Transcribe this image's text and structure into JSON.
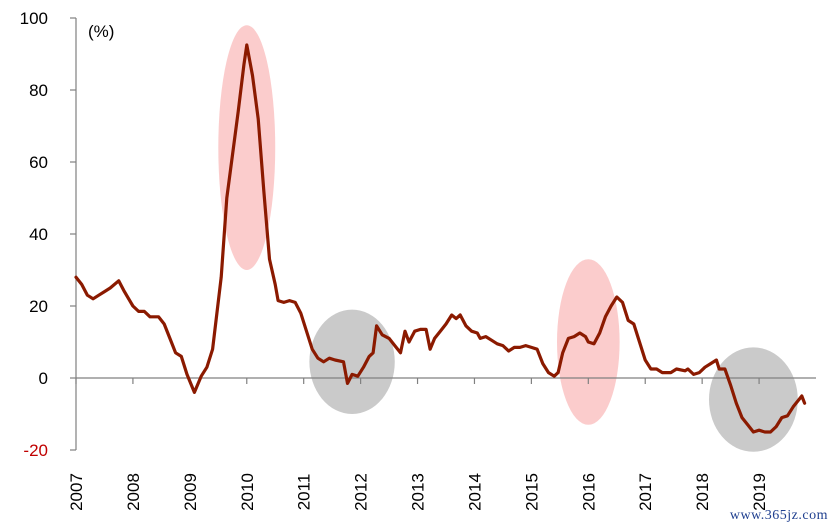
{
  "chart_data": {
    "type": "line",
    "unit_label": "(%)",
    "ylim": [
      -20,
      100
    ],
    "yticks": [
      -20,
      0,
      20,
      40,
      60,
      80,
      100
    ],
    "xlim": [
      2007,
      2020
    ],
    "xticks": [
      "2007",
      "2008",
      "2009",
      "2010",
      "2011",
      "2012",
      "2013",
      "2014",
      "2015",
      "2016",
      "2017",
      "2018",
      "2019"
    ],
    "grid": false,
    "legend": "none",
    "series": [
      {
        "color": "#8b1a00",
        "points": [
          [
            2007.0,
            28
          ],
          [
            2007.1,
            26
          ],
          [
            2007.2,
            23
          ],
          [
            2007.3,
            22
          ],
          [
            2007.4,
            23
          ],
          [
            2007.5,
            24
          ],
          [
            2007.6,
            25
          ],
          [
            2007.75,
            27
          ],
          [
            2007.85,
            24
          ],
          [
            2008.0,
            20
          ],
          [
            2008.1,
            18.5
          ],
          [
            2008.2,
            18.5
          ],
          [
            2008.3,
            17
          ],
          [
            2008.45,
            17
          ],
          [
            2008.55,
            15
          ],
          [
            2008.65,
            11
          ],
          [
            2008.75,
            7
          ],
          [
            2008.85,
            6
          ],
          [
            2008.95,
            1
          ],
          [
            2009.08,
            -4
          ],
          [
            2009.2,
            0.5
          ],
          [
            2009.3,
            3
          ],
          [
            2009.4,
            8
          ],
          [
            2009.55,
            28
          ],
          [
            2009.65,
            50
          ],
          [
            2009.75,
            62
          ],
          [
            2009.85,
            74
          ],
          [
            2009.95,
            87
          ],
          [
            2010.0,
            92.5
          ],
          [
            2010.1,
            84
          ],
          [
            2010.2,
            72
          ],
          [
            2010.3,
            52
          ],
          [
            2010.4,
            33
          ],
          [
            2010.5,
            26
          ],
          [
            2010.55,
            21.5
          ],
          [
            2010.65,
            21
          ],
          [
            2010.75,
            21.5
          ],
          [
            2010.85,
            21
          ],
          [
            2010.95,
            18
          ],
          [
            2011.05,
            13
          ],
          [
            2011.15,
            8
          ],
          [
            2011.25,
            5.5
          ],
          [
            2011.35,
            4.5
          ],
          [
            2011.45,
            5.5
          ],
          [
            2011.55,
            5
          ],
          [
            2011.7,
            4.5
          ],
          [
            2011.77,
            -1.5
          ],
          [
            2011.85,
            1
          ],
          [
            2011.95,
            0.5
          ],
          [
            2012.05,
            3
          ],
          [
            2012.15,
            6
          ],
          [
            2012.22,
            7
          ],
          [
            2012.28,
            14.5
          ],
          [
            2012.38,
            12
          ],
          [
            2012.5,
            11
          ],
          [
            2012.6,
            9
          ],
          [
            2012.7,
            7
          ],
          [
            2012.78,
            13
          ],
          [
            2012.85,
            10
          ],
          [
            2012.95,
            13
          ],
          [
            2013.05,
            13.5
          ],
          [
            2013.15,
            13.5
          ],
          [
            2013.22,
            8
          ],
          [
            2013.3,
            11
          ],
          [
            2013.4,
            13
          ],
          [
            2013.5,
            15
          ],
          [
            2013.6,
            17.5
          ],
          [
            2013.68,
            16.5
          ],
          [
            2013.75,
            17.5
          ],
          [
            2013.85,
            14.5
          ],
          [
            2013.95,
            13
          ],
          [
            2014.05,
            12.5
          ],
          [
            2014.1,
            11
          ],
          [
            2014.2,
            11.5
          ],
          [
            2014.3,
            10.5
          ],
          [
            2014.4,
            9.5
          ],
          [
            2014.5,
            9
          ],
          [
            2014.6,
            7.5
          ],
          [
            2014.7,
            8.5
          ],
          [
            2014.8,
            8.5
          ],
          [
            2014.9,
            9
          ],
          [
            2015.0,
            8.5
          ],
          [
            2015.1,
            8
          ],
          [
            2015.2,
            4
          ],
          [
            2015.3,
            1.5
          ],
          [
            2015.4,
            0.5
          ],
          [
            2015.47,
            1.5
          ],
          [
            2015.55,
            7
          ],
          [
            2015.65,
            11
          ],
          [
            2015.75,
            11.5
          ],
          [
            2015.85,
            12.5
          ],
          [
            2015.95,
            11.5
          ],
          [
            2016.0,
            10
          ],
          [
            2016.1,
            9.5
          ],
          [
            2016.2,
            12.5
          ],
          [
            2016.3,
            17
          ],
          [
            2016.4,
            20
          ],
          [
            2016.5,
            22.5
          ],
          [
            2016.6,
            21
          ],
          [
            2016.7,
            16
          ],
          [
            2016.8,
            15
          ],
          [
            2016.9,
            10
          ],
          [
            2017.0,
            5
          ],
          [
            2017.1,
            2.5
          ],
          [
            2017.2,
            2.5
          ],
          [
            2017.3,
            1.5
          ],
          [
            2017.45,
            1.5
          ],
          [
            2017.55,
            2.5
          ],
          [
            2017.7,
            2
          ],
          [
            2017.75,
            2.5
          ],
          [
            2017.85,
            1
          ],
          [
            2017.95,
            1.5
          ],
          [
            2018.05,
            3
          ],
          [
            2018.15,
            4
          ],
          [
            2018.25,
            5
          ],
          [
            2018.3,
            2.5
          ],
          [
            2018.4,
            2.5
          ],
          [
            2018.5,
            -2
          ],
          [
            2018.6,
            -7
          ],
          [
            2018.7,
            -11
          ],
          [
            2018.8,
            -13
          ],
          [
            2018.9,
            -15
          ],
          [
            2019.0,
            -14.5
          ],
          [
            2019.1,
            -15
          ],
          [
            2019.2,
            -15
          ],
          [
            2019.3,
            -13.5
          ],
          [
            2019.4,
            -11
          ],
          [
            2019.5,
            -10.5
          ],
          [
            2019.6,
            -8
          ],
          [
            2019.7,
            -6
          ],
          [
            2019.75,
            -5
          ],
          [
            2019.8,
            -7
          ]
        ]
      }
    ],
    "highlights": [
      {
        "kind": "spike",
        "x_center": 2010.0,
        "x_halfwidth": 0.5,
        "y_center": 64,
        "y_halfspan": 34,
        "color": "#fbc6c6"
      },
      {
        "kind": "trough",
        "x_center": 2011.85,
        "x_halfwidth": 0.75,
        "y_center": 4.5,
        "y_halfspan": 14.5,
        "color": "#c4c4c4"
      },
      {
        "kind": "spike",
        "x_center": 2016.0,
        "x_halfwidth": 0.55,
        "y_center": 10,
        "y_halfspan": 23,
        "color": "#fbc6c6"
      },
      {
        "kind": "trough",
        "x_center": 2018.9,
        "x_halfwidth": 0.78,
        "y_center": -6,
        "y_halfspan": 14.5,
        "color": "#c4c4c4"
      }
    ]
  },
  "watermark": "www.365jz.com"
}
